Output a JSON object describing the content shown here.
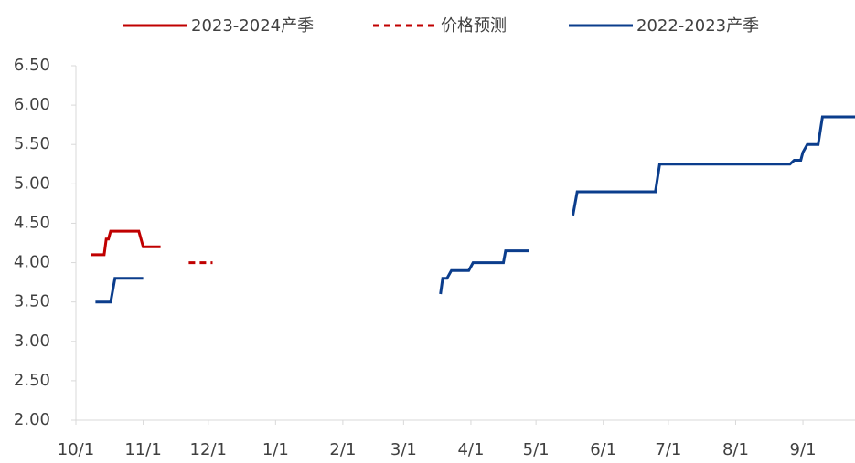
{
  "chart_data": {
    "type": "line",
    "xlim": [
      "10/1",
      "9/25"
    ],
    "xticks": [
      "10/1",
      "11/1",
      "12/1",
      "1/1",
      "2/1",
      "3/1",
      "4/1",
      "5/1",
      "6/1",
      "7/1",
      "8/1",
      "9/1"
    ],
    "ylim": [
      2,
      6.5
    ],
    "yticks": [
      {
        "value": 2,
        "label": "2.00"
      },
      {
        "value": 2.5,
        "label": "2.50"
      },
      {
        "value": 3,
        "label": "3.00"
      },
      {
        "value": 3.5,
        "label": "3.50"
      },
      {
        "value": 4,
        "label": "4.00"
      },
      {
        "value": 4.5,
        "label": "4.50"
      },
      {
        "value": 5,
        "label": "5.00"
      },
      {
        "value": 5.5,
        "label": "5.50"
      },
      {
        "value": 6,
        "label": "6.00"
      },
      {
        "value": 6.5,
        "label": "6.50"
      }
    ],
    "series": [
      {
        "name": "2023-2024产季",
        "color": "#c00000",
        "dash": false,
        "x": [
          "10/8",
          "10/14",
          "10/15",
          "10/16",
          "10/17",
          "10/30",
          "11/1",
          "11/9"
        ],
        "values": [
          4.1,
          4.1,
          4.3,
          4.3,
          4.4,
          4.4,
          4.2,
          4.2
        ]
      },
      {
        "name": "价格预测",
        "color": "#c00000",
        "dash": true,
        "x": [
          "11/22",
          "12/3"
        ],
        "values": [
          4.0,
          4.0
        ]
      },
      {
        "name": "2022-2023产季",
        "color": "#0b3d8c",
        "dash": false,
        "x": [
          "10/10",
          "10/17",
          "10/19",
          "11/1",
          "11/28",
          "3/18",
          "3/19",
          "3/21",
          "3/23",
          "3/31",
          "4/2",
          "4/16",
          "4/17",
          "4/28",
          "5/3",
          "5/18",
          "5/20",
          "6/25",
          "6/27",
          "8/26",
          "8/28",
          "8/31",
          "9/1",
          "9/3",
          "9/8",
          "9/10",
          "9/25"
        ],
        "values": [
          3.5,
          3.5,
          3.8,
          3.8,
          null,
          3.6,
          3.8,
          3.8,
          3.9,
          3.9,
          4.0,
          4.0,
          4.15,
          4.15,
          null,
          4.6,
          4.9,
          4.9,
          5.25,
          5.25,
          5.3,
          5.3,
          5.4,
          5.5,
          5.5,
          5.85,
          5.85
        ]
      }
    ]
  }
}
